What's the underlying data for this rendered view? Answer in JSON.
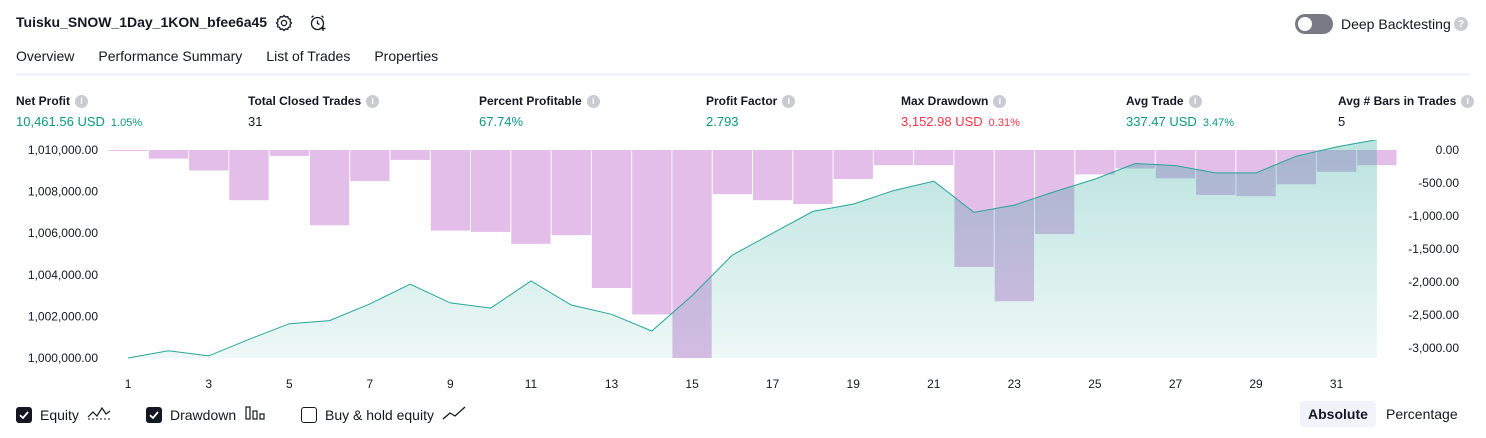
{
  "header": {
    "title": "Tuisku_SNOW_1Day_1KON_bfee6a45",
    "deep_backtesting_label": "Deep Backtesting",
    "deep_backtesting_on": false
  },
  "tabs": [
    {
      "label": "Overview",
      "active": true
    },
    {
      "label": "Performance Summary",
      "active": false
    },
    {
      "label": "List of Trades",
      "active": false
    },
    {
      "label": "Properties",
      "active": false
    }
  ],
  "metrics": [
    {
      "label": "Net Profit",
      "value": "10,461.56 USD",
      "pct": "1.05%",
      "color": "green"
    },
    {
      "label": "Total Closed Trades",
      "value": "31",
      "pct": "",
      "color": "dark"
    },
    {
      "label": "Percent Profitable",
      "value": "67.74%",
      "pct": "",
      "color": "green"
    },
    {
      "label": "Profit Factor",
      "value": "2.793",
      "pct": "",
      "color": "green"
    },
    {
      "label": "Max Drawdown",
      "value": "3,152.98 USD",
      "pct": "0.31%",
      "color": "red"
    },
    {
      "label": "Avg Trade",
      "value": "337.47 USD",
      "pct": "3.47%",
      "color": "green"
    },
    {
      "label": "Avg # Bars in Trades",
      "value": "5",
      "pct": "",
      "color": "dark"
    }
  ],
  "chart_data": {
    "type": "line+bar",
    "x": [
      1,
      2,
      3,
      4,
      5,
      6,
      7,
      8,
      9,
      10,
      11,
      12,
      13,
      14,
      15,
      16,
      17,
      18,
      19,
      20,
      21,
      22,
      23,
      24,
      25,
      26,
      27,
      28,
      29,
      30,
      31,
      32
    ],
    "x_tick_labels": [
      "1",
      "3",
      "5",
      "7",
      "9",
      "11",
      "13",
      "15",
      "17",
      "19",
      "21",
      "23",
      "25",
      "27",
      "29",
      "31"
    ],
    "left_axis": {
      "ticks": [
        "1,010,000.00",
        "1,008,000.00",
        "1,006,000.00",
        "1,004,000.00",
        "1,002,000.00",
        "1,000,000.00"
      ],
      "ylim": [
        1000000,
        1010000
      ]
    },
    "right_axis": {
      "ticks": [
        "0.00",
        "-500.00",
        "-1,000.00",
        "-1,500.00",
        "-2,000.00",
        "-2,500.00",
        "-3,000.00"
      ],
      "ylim": [
        -3150,
        0
      ]
    },
    "series": [
      {
        "name": "Equity",
        "axis": "left",
        "type": "area",
        "values": [
          1000000,
          1000350,
          1000100,
          1000900,
          1001650,
          1001800,
          1002600,
          1003550,
          1002650,
          1002400,
          1003700,
          1002550,
          1002100,
          1001300,
          1003000,
          1004950,
          1006000,
          1007050,
          1007400,
          1008050,
          1008500,
          1007000,
          1007350,
          1008000,
          1008600,
          1009350,
          1009250,
          1008900,
          1008900,
          1009700,
          1010150,
          1010500
        ],
        "color": "#26a69a"
      },
      {
        "name": "Drawdown",
        "axis": "right",
        "type": "bar",
        "values": [
          0,
          -130,
          -310,
          -760,
          -90,
          -1140,
          -470,
          -150,
          -1220,
          -1240,
          -1420,
          -1290,
          -2090,
          -2490,
          -3150,
          -670,
          -760,
          -820,
          -440,
          -230,
          -230,
          -1770,
          -2290,
          -1270,
          -370,
          -280,
          -430,
          -680,
          -700,
          -520,
          -330,
          -230
        ],
        "color": "#ce93d8"
      }
    ]
  },
  "legend": [
    {
      "label": "Equity",
      "checked": true,
      "icon": "equity-line-icon"
    },
    {
      "label": "Drawdown",
      "checked": true,
      "icon": "drawdown-bars-icon"
    },
    {
      "label": "Buy & hold equity",
      "checked": false,
      "icon": "buy-hold-line-icon"
    }
  ],
  "view_mode": {
    "absolute_label": "Absolute",
    "percentage_label": "Percentage",
    "active": "absolute"
  }
}
